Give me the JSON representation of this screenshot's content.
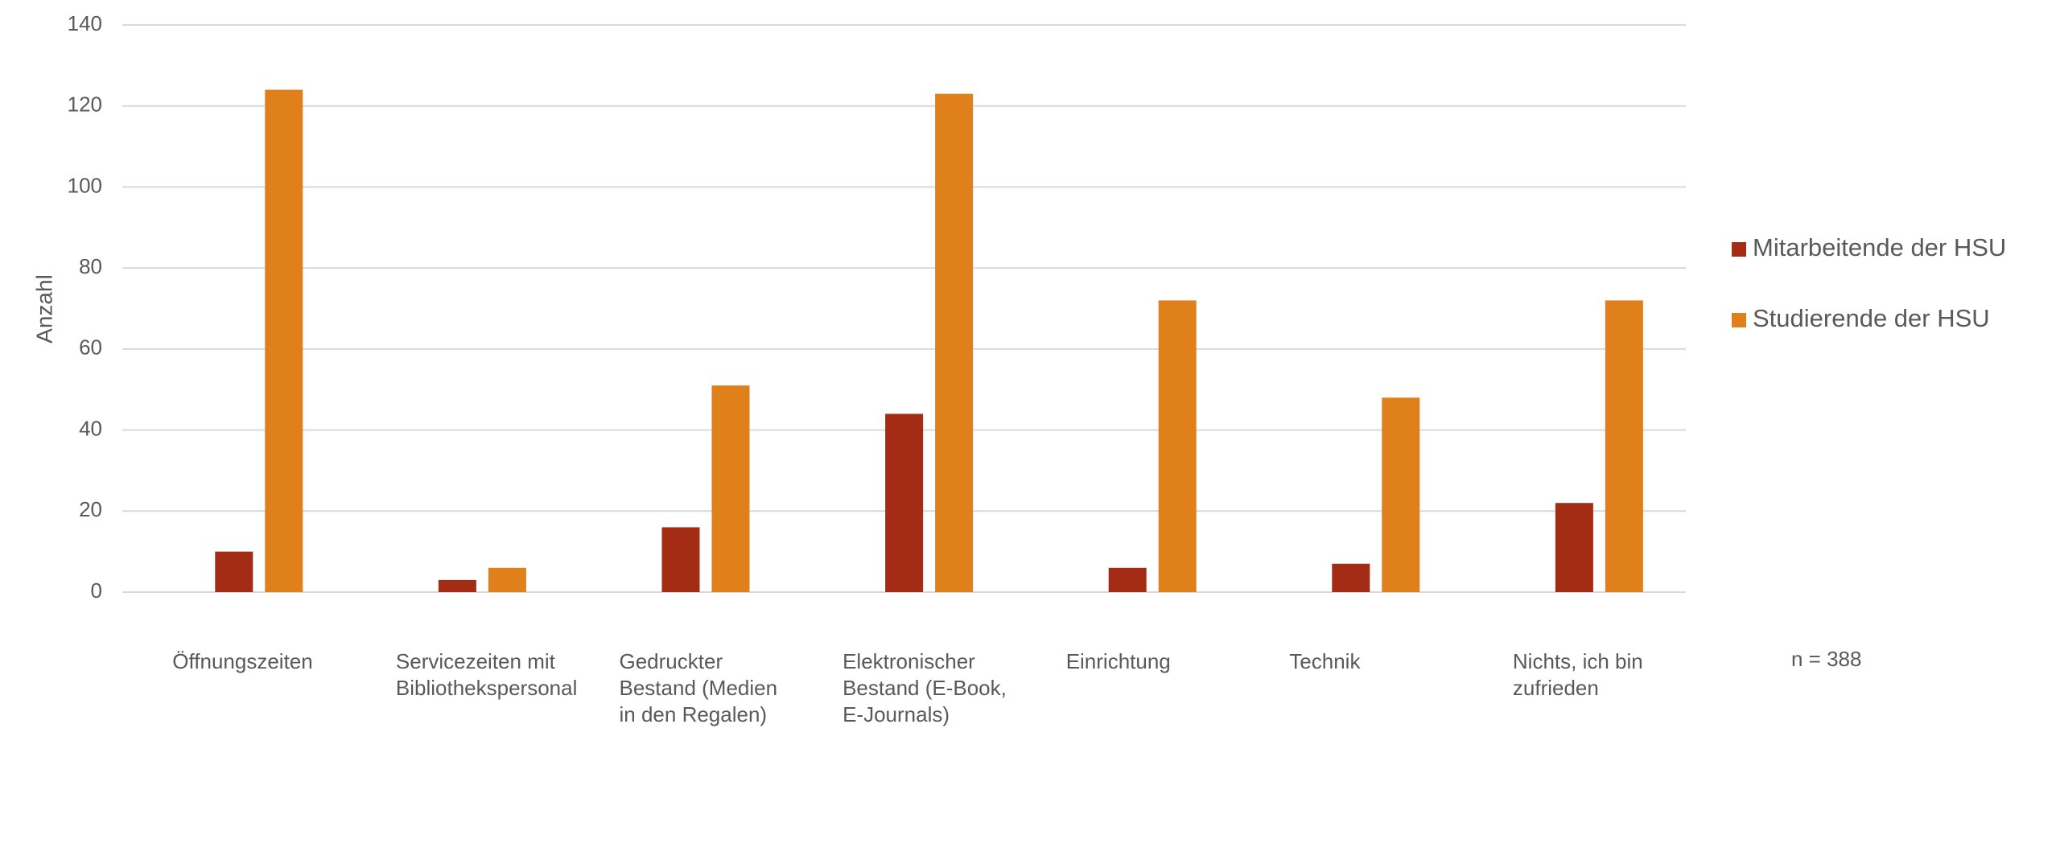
{
  "chart_data": {
    "type": "bar",
    "y_label": "Anzahl",
    "annotation": "n = 388",
    "categories": [
      "Öffnungszeiten",
      "Servicezeiten mit Bibliothekspersonal",
      "Gedruckter Bestand (Medien in den Regalen)",
      "Elektronischer Bestand (E-Book, E-Journals)",
      "Einrichtung",
      "Technik",
      "Nichts, ich bin zufrieden"
    ],
    "series": [
      {
        "name": "Mitarbeitende der HSU",
        "color": "#a52c14",
        "values": [
          10,
          3,
          16,
          44,
          6,
          7,
          22
        ]
      },
      {
        "name": "Studierende der HSU",
        "color": "#df801b",
        "values": [
          124,
          6,
          51,
          123,
          72,
          48,
          72
        ]
      }
    ],
    "ylim": [
      0,
      140
    ],
    "yticks": [
      0,
      20,
      40,
      60,
      80,
      100,
      120,
      140
    ],
    "grid": true,
    "legend": "right"
  }
}
